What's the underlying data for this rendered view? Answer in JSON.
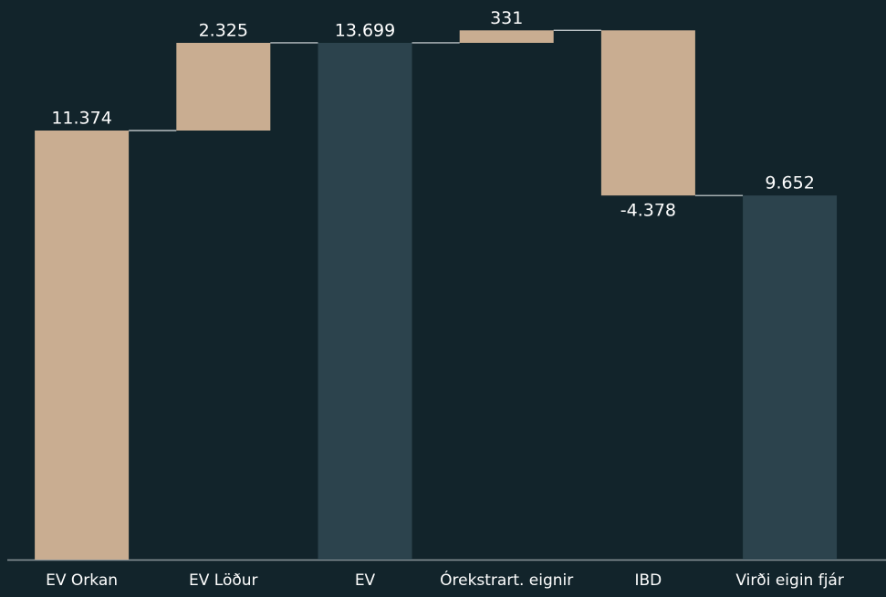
{
  "chart_data": {
    "type": "waterfall",
    "categories": [
      "EV Orkan",
      "EV Löður",
      "EV",
      "Órekstrart. eignir",
      "IBD",
      "Virði eigin fjár"
    ],
    "values": [
      11374,
      2325,
      13699,
      331,
      -4378,
      9652
    ],
    "value_labels": [
      "11.374",
      "2.325",
      "13.699",
      "331",
      "-4.378",
      "9.652"
    ],
    "totals": [
      false,
      false,
      true,
      false,
      false,
      true
    ],
    "color": "#c9ad91",
    "total_color": "#2c434d",
    "ylim": [
      0,
      14835
    ]
  }
}
